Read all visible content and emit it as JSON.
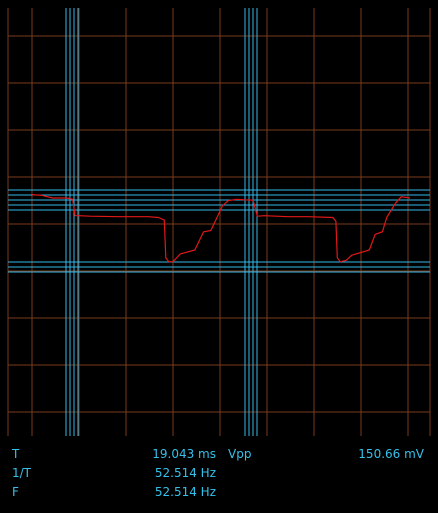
{
  "colors": {
    "background": "#000000",
    "grid": "#7a3a1a",
    "cursor": "#35b8e8",
    "trace": "#e01818",
    "text": "#35c0ea"
  },
  "display": {
    "grid_divisions_x": 9,
    "grid_divisions_y": 9,
    "trace_samples": [
      [
        0.0,
        0.13
      ],
      [
        0.35,
        0.1
      ],
      [
        0.7,
        0.0
      ],
      [
        1.2,
        0.0
      ],
      [
        1.4,
        -0.05
      ],
      [
        1.48,
        -0.68
      ],
      [
        1.6,
        -0.68
      ],
      [
        2.0,
        -0.7
      ],
      [
        3.0,
        -0.72
      ],
      [
        4.0,
        -0.72
      ],
      [
        4.35,
        -0.75
      ],
      [
        4.55,
        -0.85
      ],
      [
        4.6,
        -2.3
      ],
      [
        4.7,
        -2.45
      ],
      [
        4.85,
        -2.45
      ],
      [
        5.1,
        -2.15
      ],
      [
        5.6,
        -2.0
      ],
      [
        5.9,
        -1.3
      ],
      [
        6.15,
        -1.25
      ],
      [
        6.3,
        -0.9
      ],
      [
        6.55,
        -0.3
      ],
      [
        6.75,
        -0.1
      ],
      [
        7.05,
        -0.05
      ],
      [
        7.3,
        -0.07
      ],
      [
        7.6,
        -0.08
      ],
      [
        7.75,
        -0.7
      ],
      [
        8.0,
        -0.68
      ],
      [
        8.8,
        -0.72
      ],
      [
        9.5,
        -0.72
      ],
      [
        10.35,
        -0.75
      ],
      [
        10.45,
        -0.9
      ],
      [
        10.5,
        -2.3
      ],
      [
        10.6,
        -2.45
      ],
      [
        10.8,
        -2.4
      ],
      [
        11.0,
        -2.2
      ],
      [
        11.6,
        -2.0
      ],
      [
        11.8,
        -1.4
      ],
      [
        12.05,
        -1.3
      ],
      [
        12.2,
        -0.75
      ],
      [
        12.5,
        -0.2
      ],
      [
        12.7,
        0.05
      ],
      [
        13.0,
        0.0
      ]
    ]
  },
  "measurements": {
    "period": {
      "label": "T",
      "value": "19.043 ms"
    },
    "reciprocal": {
      "label": "1/T",
      "value": "52.514 Hz"
    },
    "frequency": {
      "label": "F",
      "value": "52.514 Hz"
    },
    "vpp": {
      "label": "Vpp",
      "value": "150.66 mV"
    }
  }
}
